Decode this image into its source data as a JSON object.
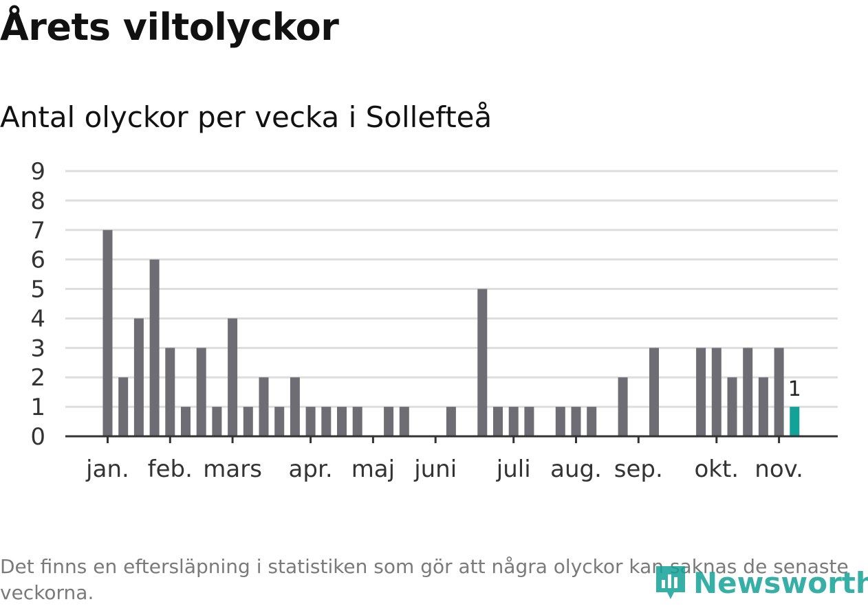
{
  "title": "Årets viltolyckor",
  "subtitle": "Antal olyckor per vecka i Sollefteå",
  "note": "Det finns en eftersläpning i statistiken som gör att några olyckor kan saknas de senaste veckorna.",
  "logo": {
    "text": "Newsworthy",
    "icon": "newsworthy-logo-icon"
  },
  "colors": {
    "bar": "#6e6d73",
    "highlight": "#13a297",
    "grid": "#dddddd",
    "axis": "#333333"
  },
  "chart_data": {
    "type": "bar",
    "title": "Antal olyckor per vecka i Sollefteå",
    "xlabel": "",
    "ylabel": "",
    "ylim": [
      0,
      9
    ],
    "y_ticks": [
      0,
      1,
      2,
      3,
      4,
      5,
      6,
      7,
      8,
      9
    ],
    "grid": true,
    "weeks": [
      1,
      2,
      3,
      4,
      5,
      6,
      7,
      8,
      9,
      10,
      11,
      12,
      13,
      14,
      15,
      16,
      17,
      18,
      19,
      20,
      21,
      22,
      23,
      24,
      25,
      26,
      27,
      28,
      29,
      30,
      31,
      32,
      33,
      34,
      35,
      36,
      37,
      38,
      39,
      40,
      41,
      42,
      43,
      44,
      45,
      46,
      47,
      48
    ],
    "values": [
      0,
      0,
      7,
      2,
      4,
      6,
      3,
      1,
      3,
      1,
      4,
      1,
      2,
      1,
      2,
      1,
      1,
      1,
      1,
      0,
      1,
      1,
      0,
      0,
      1,
      0,
      5,
      1,
      1,
      1,
      0,
      1,
      1,
      1,
      0,
      2,
      0,
      3,
      0,
      0,
      3,
      3,
      2,
      3,
      2,
      3,
      1,
      0
    ],
    "highlight_week": 47,
    "highlight_label": "1",
    "month_labels": [
      {
        "label": "jan.",
        "week": 3
      },
      {
        "label": "feb.",
        "week": 7
      },
      {
        "label": "mars",
        "week": 11
      },
      {
        "label": "apr.",
        "week": 16
      },
      {
        "label": "maj",
        "week": 20
      },
      {
        "label": "juni",
        "week": 24
      },
      {
        "label": "juli",
        "week": 29
      },
      {
        "label": "aug.",
        "week": 33
      },
      {
        "label": "sep.",
        "week": 37
      },
      {
        "label": "okt.",
        "week": 42
      },
      {
        "label": "nov.",
        "week": 46
      }
    ]
  }
}
